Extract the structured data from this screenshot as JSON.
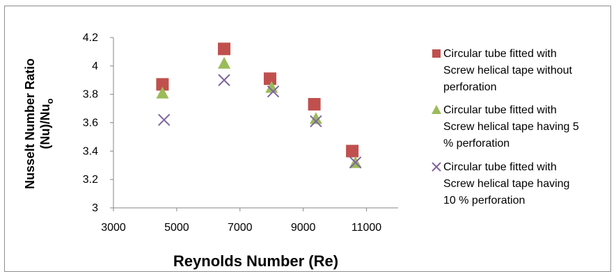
{
  "chart_data": {
    "type": "scatter",
    "title": "",
    "xlabel": "Reynolds Number (Re)",
    "ylabel": {
      "line1": "Nusselt Number Ratio",
      "line2_main": "(Nu)/Nu",
      "line2_sub": "o"
    },
    "xlim": [
      3000,
      12000
    ],
    "ylim": [
      3,
      4.2
    ],
    "xticks": [
      {
        "value": 3000,
        "label": "3000"
      },
      {
        "value": 5000,
        "label": "5000"
      },
      {
        "value": 7000,
        "label": "7000"
      },
      {
        "value": 9000,
        "label": "9000"
      },
      {
        "value": 11000,
        "label": "11000"
      }
    ],
    "yticks": [
      {
        "value": 3,
        "label": "3"
      },
      {
        "value": 3.2,
        "label": "3.2"
      },
      {
        "value": 3.4,
        "label": "3.4"
      },
      {
        "value": 3.6,
        "label": "3.6"
      },
      {
        "value": 3.8,
        "label": "3.8"
      },
      {
        "value": 4,
        "label": "4"
      },
      {
        "value": 4.2,
        "label": "4.2"
      }
    ],
    "grid": false,
    "legend_position": "right",
    "series": [
      {
        "name_lines": [
          "Circular tube fitted with",
          "Screw helical tape without",
          "perforation"
        ],
        "marker": "square",
        "color": "#c0504d",
        "points": [
          {
            "x": 4550,
            "y": 3.87
          },
          {
            "x": 6500,
            "y": 4.12
          },
          {
            "x": 7950,
            "y": 3.91
          },
          {
            "x": 9350,
            "y": 3.73
          },
          {
            "x": 10550,
            "y": 3.4
          }
        ]
      },
      {
        "name_lines": [
          "Circular tube fitted with",
          "Screw helical tape  having 5",
          "% perforation"
        ],
        "marker": "triangle",
        "color": "#9bbb59",
        "points": [
          {
            "x": 4550,
            "y": 3.81
          },
          {
            "x": 6500,
            "y": 4.02
          },
          {
            "x": 8000,
            "y": 3.85
          },
          {
            "x": 9400,
            "y": 3.63
          },
          {
            "x": 10650,
            "y": 3.32
          }
        ]
      },
      {
        "name_lines": [
          "Circular tube fitted with",
          "Screw helical tape  having",
          "10 % perforation"
        ],
        "marker": "x",
        "color": "#8064a2",
        "points": [
          {
            "x": 4600,
            "y": 3.62
          },
          {
            "x": 6500,
            "y": 3.9
          },
          {
            "x": 8050,
            "y": 3.82
          },
          {
            "x": 9400,
            "y": 3.61
          },
          {
            "x": 10650,
            "y": 3.32
          }
        ]
      }
    ]
  }
}
